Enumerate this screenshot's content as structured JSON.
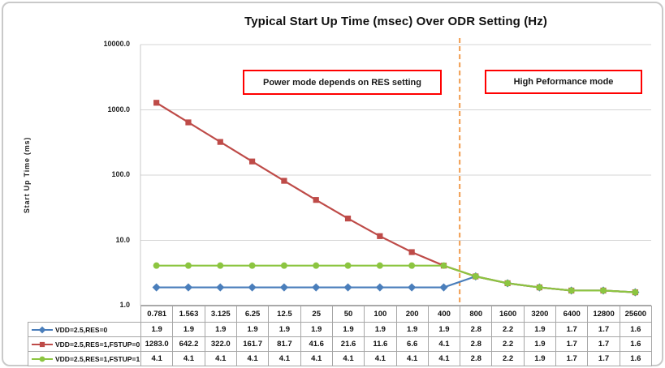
{
  "chart_data": {
    "type": "line",
    "title": "Typical Start Up Time (msec) Over ODR Setting (Hz)",
    "xlabel": "",
    "ylabel": "Start Up Time (ms)",
    "y_scale": "log",
    "ylim": [
      1,
      10000
    ],
    "y_tick_labels": [
      "10000.0",
      "1000.0",
      "100.0",
      "10.0",
      "1.0"
    ],
    "grid": true,
    "legend_position": "data-table-left-column",
    "categories": [
      "0.781",
      "1.563",
      "3.125",
      "6.25",
      "12.5",
      "25",
      "50",
      "100",
      "200",
      "400",
      "800",
      "1600",
      "3200",
      "6400",
      "12800",
      "25600"
    ],
    "series": [
      {
        "name": "VDD=2.5,RES=0",
        "color": "#4a7ebb",
        "marker": "diamond",
        "values": [
          1.9,
          1.9,
          1.9,
          1.9,
          1.9,
          1.9,
          1.9,
          1.9,
          1.9,
          1.9,
          2.8,
          2.2,
          1.9,
          1.7,
          1.7,
          1.6
        ]
      },
      {
        "name": "VDD=2.5,RES=1,FSTUP=0",
        "color": "#be4b48",
        "marker": "square",
        "values": [
          1283.0,
          642.2,
          322.0,
          161.7,
          81.7,
          41.6,
          21.6,
          11.6,
          6.6,
          4.1,
          2.8,
          2.2,
          1.9,
          1.7,
          1.7,
          1.6
        ]
      },
      {
        "name": "VDD=2.5,RES=1,FSTUP=1",
        "color": "#8cc540",
        "marker": "circle",
        "values": [
          4.1,
          4.1,
          4.1,
          4.1,
          4.1,
          4.1,
          4.1,
          4.1,
          4.1,
          4.1,
          2.8,
          2.2,
          1.9,
          1.7,
          1.7,
          1.6
        ]
      }
    ],
    "divider_line": {
      "between_categories": [
        "400",
        "800"
      ],
      "style": "dashed",
      "color": "#f2a45c"
    },
    "annotations": [
      {
        "text": "Power mode depends on RES setting",
        "side": "left-of-divider"
      },
      {
        "text": "High Peformance mode",
        "side": "right-of-divider"
      }
    ]
  },
  "colors": {
    "gridline": "#d4d4d4",
    "axis": "#8f8f8f",
    "table_border": "#a6a6a6",
    "annotation_border": "#ff0000",
    "divider": "#f2a45c"
  }
}
